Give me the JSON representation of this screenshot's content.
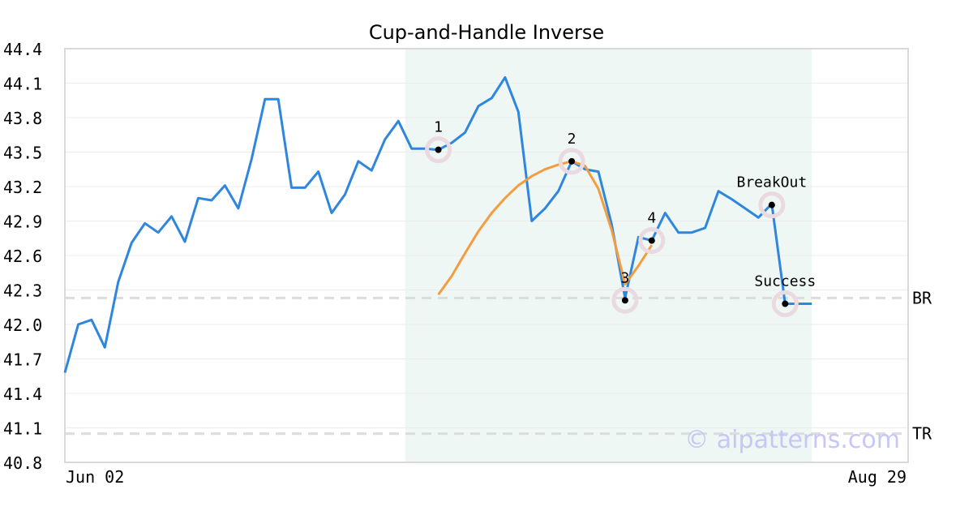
{
  "chart_data": {
    "type": "line",
    "title": "Cup-and-Handle Inverse",
    "xlabel": "",
    "ylabel": "",
    "ylim": [
      40.8,
      44.4
    ],
    "yticks": [
      "44.4",
      "44.1",
      "43.8",
      "43.5",
      "43.2",
      "42.9",
      "42.6",
      "42.3",
      "42.0",
      "41.7",
      "41.4",
      "41.1",
      "40.8"
    ],
    "x_tick_labels": [
      {
        "index": 0,
        "label": "Jun 02"
      },
      {
        "index": 63,
        "label": "Aug 29"
      }
    ],
    "x_count": 64,
    "grid": true,
    "series": [
      {
        "color": "#2e86de",
        "values": [
          41.58,
          42.0,
          42.04,
          41.8,
          42.37,
          42.71,
          42.88,
          42.8,
          42.94,
          42.72,
          43.1,
          43.08,
          43.21,
          43.01,
          43.44,
          43.96,
          43.96,
          43.19,
          43.19,
          43.33,
          42.97,
          43.13,
          43.42,
          43.34,
          43.61,
          43.77,
          43.53,
          43.53,
          43.52,
          43.58,
          43.67,
          43.9,
          43.97,
          44.15,
          43.85,
          42.9,
          43.01,
          43.16,
          43.42,
          43.35,
          43.33,
          42.87,
          42.23,
          42.76,
          42.73,
          42.97,
          42.8,
          42.8,
          42.84,
          43.16,
          43.09,
          43.01,
          42.93,
          43.05,
          42.18,
          42.18,
          42.18
        ]
      },
      {
        "color": "#f39c40",
        "start_index": 28,
        "values": [
          42.26,
          42.42,
          42.62,
          42.81,
          42.97,
          43.1,
          43.21,
          43.29,
          43.35,
          43.39,
          43.42,
          43.38,
          43.18,
          42.82,
          42.35,
          42.51,
          42.69
        ]
      }
    ],
    "shaded_region": {
      "from_index": 26,
      "to_index": 56,
      "color": "#eef7f3"
    },
    "reference_lines": [
      {
        "label": "BR",
        "value": 42.23
      },
      {
        "label": "TR",
        "value": 41.05
      }
    ],
    "annotations": [
      {
        "label": "1",
        "index": 28,
        "value": 43.52
      },
      {
        "label": "2",
        "index": 38,
        "value": 43.42
      },
      {
        "label": "3",
        "index": 42,
        "value": 42.21
      },
      {
        "label": "4",
        "index": 44,
        "value": 42.73
      },
      {
        "label": "BreakOut",
        "index": 53,
        "value": 43.04
      },
      {
        "label": "Success",
        "index": 54,
        "value": 42.18
      }
    ],
    "watermark": "© aipatterns.com"
  }
}
